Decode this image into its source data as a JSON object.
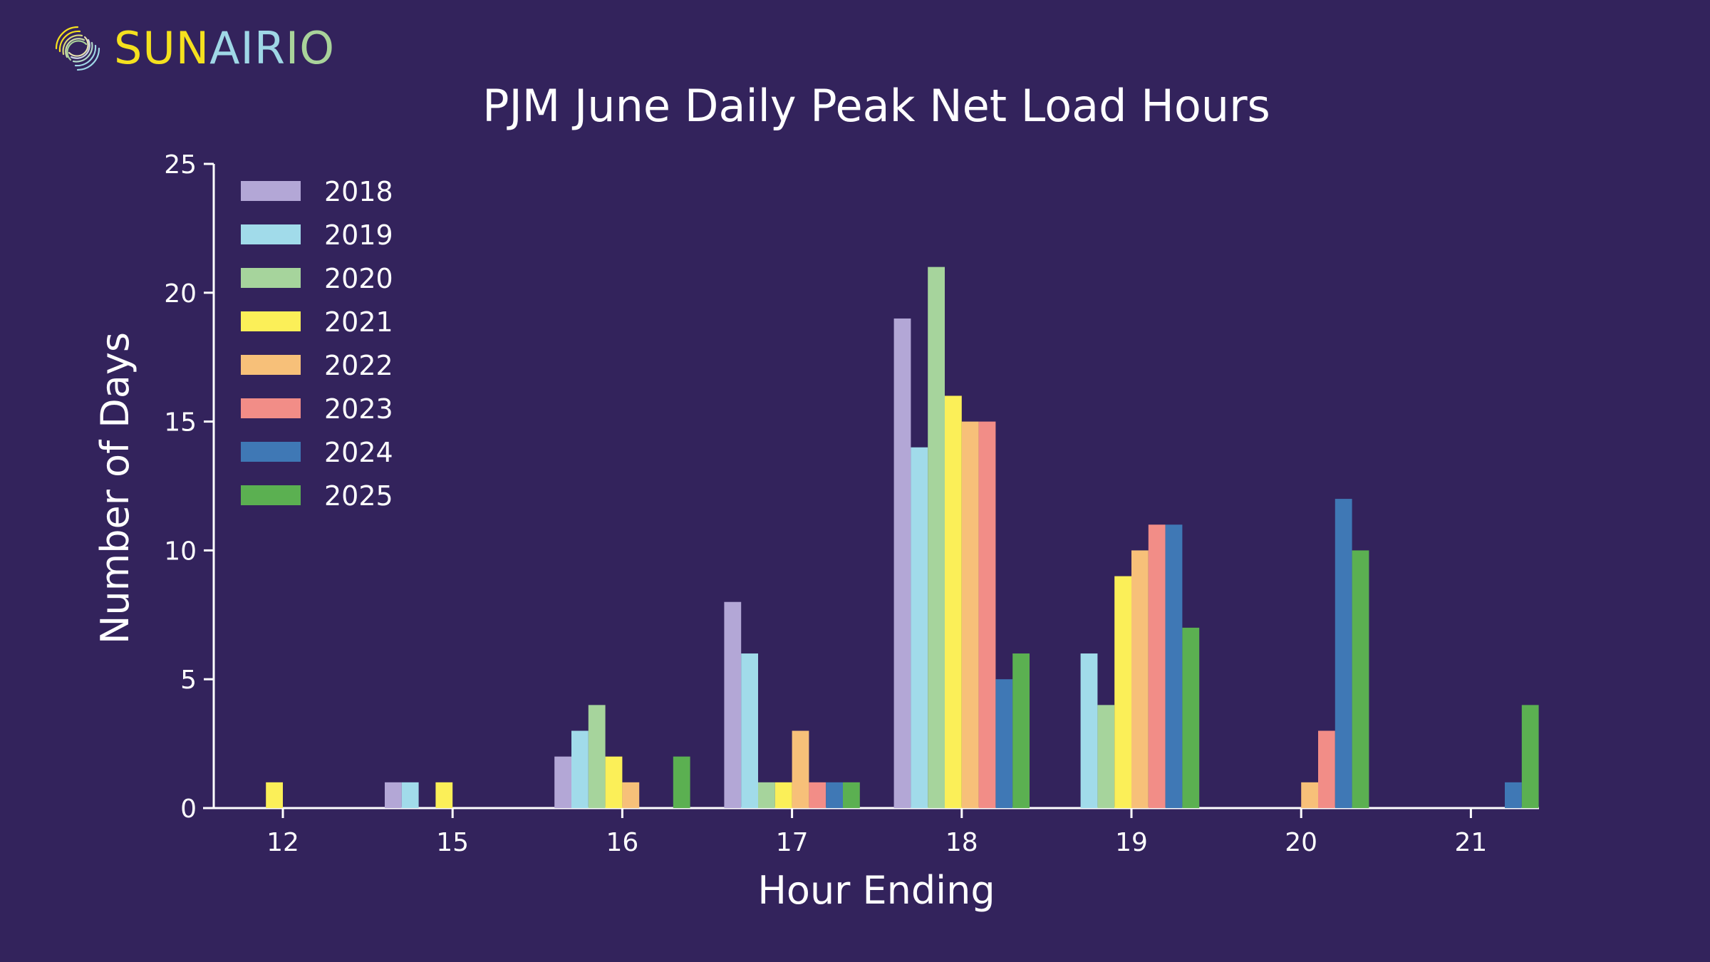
{
  "brand": {
    "word_part1": "SUN",
    "word_part2": "AIR",
    "word_part3": "IO",
    "colors": {
      "sun": "#f5e11e",
      "air": "#9fd7e6",
      "io": "#a9d39a"
    },
    "icon": "swirl-logo-icon"
  },
  "theme": {
    "background": "#33235c",
    "axis": "#ffffff",
    "text": "#ffffff"
  },
  "chart_data": {
    "type": "bar",
    "title": "PJM June Daily Peak Net Load Hours",
    "xlabel": "Hour Ending",
    "ylabel": "Number of Days",
    "ylim": [
      0,
      25
    ],
    "yticks": [
      0,
      5,
      10,
      15,
      20,
      25
    ],
    "categories": [
      "12",
      "15",
      "16",
      "17",
      "18",
      "19",
      "20",
      "21"
    ],
    "legend_position": "top-left",
    "series": [
      {
        "name": "2018",
        "color": "#b3a7d6",
        "values": [
          0,
          1,
          2,
          8,
          19,
          0,
          0,
          0
        ]
      },
      {
        "name": "2019",
        "color": "#a1dbea",
        "values": [
          0,
          1,
          3,
          6,
          14,
          6,
          0,
          0
        ]
      },
      {
        "name": "2020",
        "color": "#a6d49c",
        "values": [
          0,
          0,
          4,
          1,
          21,
          4,
          0,
          0
        ]
      },
      {
        "name": "2021",
        "color": "#fbef58",
        "values": [
          1,
          1,
          2,
          1,
          16,
          9,
          0,
          0
        ]
      },
      {
        "name": "2022",
        "color": "#f7c079",
        "values": [
          0,
          0,
          1,
          3,
          15,
          10,
          1,
          0
        ]
      },
      {
        "name": "2023",
        "color": "#f28d87",
        "values": [
          0,
          0,
          0,
          1,
          15,
          11,
          3,
          0
        ]
      },
      {
        "name": "2024",
        "color": "#3f78b5",
        "values": [
          0,
          0,
          0,
          1,
          5,
          11,
          12,
          1
        ]
      },
      {
        "name": "2025",
        "color": "#5bb051",
        "values": [
          0,
          0,
          2,
          1,
          6,
          7,
          10,
          4
        ]
      }
    ]
  }
}
